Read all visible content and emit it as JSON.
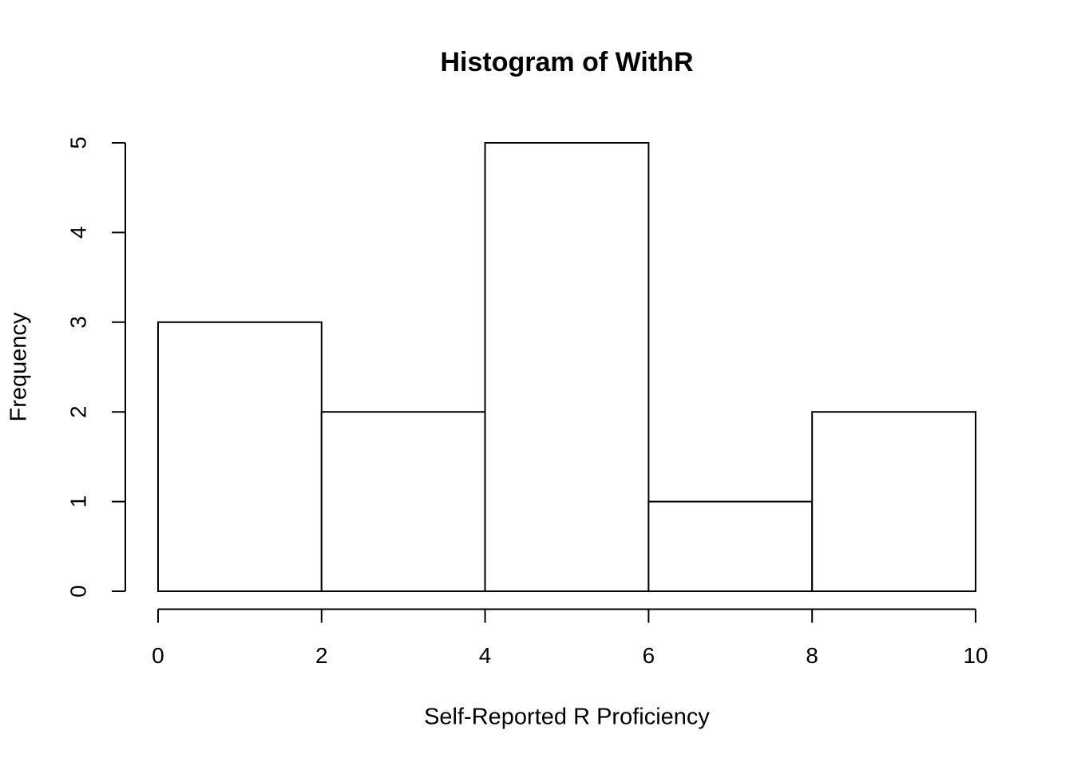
{
  "chart_data": {
    "type": "histogram",
    "title": "Histogram of WithR",
    "x_label": "Self-Reported R Proficiency",
    "y_label": "Frequency",
    "bins": [
      0,
      2,
      4,
      6,
      8,
      10
    ],
    "values": [
      3,
      2,
      5,
      1,
      2
    ],
    "color": "#ffffff",
    "edge_color": "#000000",
    "xlim": [
      -0.4,
      10.4
    ],
    "ylim": [
      -0.2,
      5.2
    ],
    "xticks": [
      0,
      2,
      4,
      6,
      8,
      10
    ],
    "yticks": [
      0,
      1,
      2,
      3,
      4,
      5
    ],
    "grid": false
  }
}
